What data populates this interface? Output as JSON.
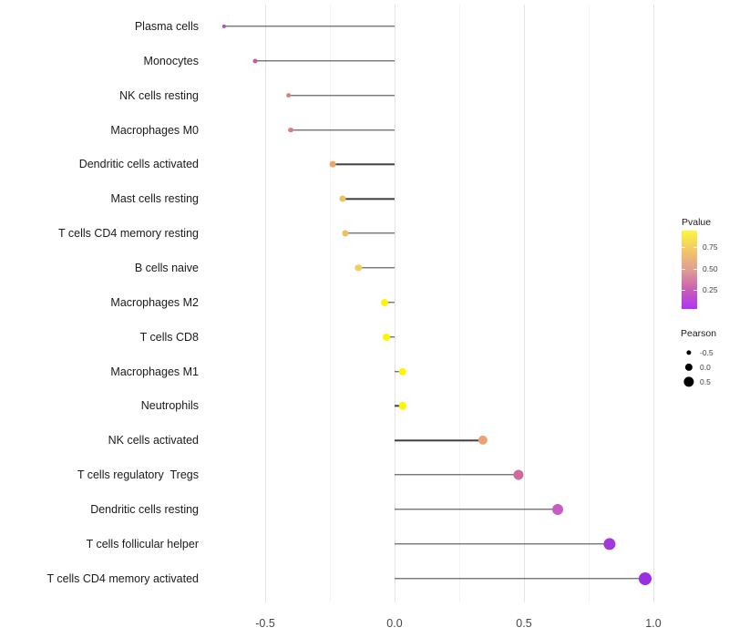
{
  "chart_data": {
    "type": "lollipop",
    "title": "",
    "xlabel": "",
    "ylabel": "",
    "x_axis": {
      "tick_values": [
        -0.5,
        0.0,
        0.5,
        1.0
      ],
      "tick_labels": [
        "-0.5",
        "0.0",
        "0.5",
        "1.0"
      ],
      "minor_tick_values": [
        -0.25,
        0.25,
        0.75
      ],
      "range": [
        -0.74,
        1.05
      ],
      "grid": "vertical only"
    },
    "encoding": {
      "x": "Pearson correlation",
      "color": "Pvalue",
      "size": "Pearson"
    },
    "points": [
      {
        "category": "Plasma cells",
        "pearson": -0.66,
        "pvalue_approx": 0.2,
        "color": "#b54cc0"
      },
      {
        "category": "Monocytes",
        "pearson": -0.54,
        "pvalue_approx": 0.3,
        "color": "#ca5aa5"
      },
      {
        "category": "NK cells resting",
        "pearson": -0.41,
        "pvalue_approx": 0.45,
        "color": "#d5808d"
      },
      {
        "category": "Macrophages M0",
        "pearson": -0.4,
        "pvalue_approx": 0.45,
        "color": "#d57f8b"
      },
      {
        "category": "Dendritic cells activated",
        "pearson": -0.24,
        "pvalue_approx": 0.62,
        "color": "#eba75f"
      },
      {
        "category": "Mast cells resting",
        "pearson": -0.2,
        "pvalue_approx": 0.68,
        "color": "#eec161"
      },
      {
        "category": "T cells CD4 memory resting",
        "pearson": -0.19,
        "pvalue_approx": 0.68,
        "color": "#eec061"
      },
      {
        "category": "B cells naive",
        "pearson": -0.14,
        "pvalue_approx": 0.73,
        "color": "#f2cf59"
      },
      {
        "category": "Macrophages M2",
        "pearson": -0.04,
        "pvalue_approx": 0.9,
        "color": "#fcf405"
      },
      {
        "category": "T cells CD8",
        "pearson": -0.03,
        "pvalue_approx": 0.9,
        "color": "#fcf405"
      },
      {
        "category": "Macrophages M1",
        "pearson": 0.03,
        "pvalue_approx": 0.9,
        "color": "#fdf505"
      },
      {
        "category": "Neutrophils",
        "pearson": 0.03,
        "pvalue_approx": 0.9,
        "color": "#fdf505"
      },
      {
        "category": "NK cells activated",
        "pearson": 0.34,
        "pvalue_approx": 0.55,
        "color": "#eca374"
      },
      {
        "category": "T cells regulatory  Tregs",
        "pearson": 0.48,
        "pvalue_approx": 0.38,
        "color": "#d06a9e"
      },
      {
        "category": "Dendritic cells resting",
        "pearson": 0.63,
        "pvalue_approx": 0.25,
        "color": "#c95bc5"
      },
      {
        "category": "T cells follicular helper",
        "pearson": 0.83,
        "pvalue_approx": 0.12,
        "color": "#a338d9"
      },
      {
        "category": "T cells CD4 memory activated",
        "pearson": 0.97,
        "pvalue_approx": 0.05,
        "color": "#9a2fe2"
      }
    ],
    "legends": {
      "pvalue": {
        "title": "Pvalue",
        "position": "right",
        "tick_labels": [
          "0.75",
          "0.50",
          "0.25"
        ],
        "tick_values": [
          0.75,
          0.5,
          0.25
        ],
        "gradient_top_to_bottom": [
          "#fdf63e",
          "#f2c767",
          "#df9e94",
          "#c95fb5",
          "#b232f3"
        ]
      },
      "pearson": {
        "title": "Pearson",
        "position": "right",
        "items": [
          {
            "label": "-0.5",
            "value": -0.5
          },
          {
            "label": "0.0",
            "value": 0.0
          },
          {
            "label": "0.5",
            "value": 0.5
          }
        ]
      }
    }
  }
}
